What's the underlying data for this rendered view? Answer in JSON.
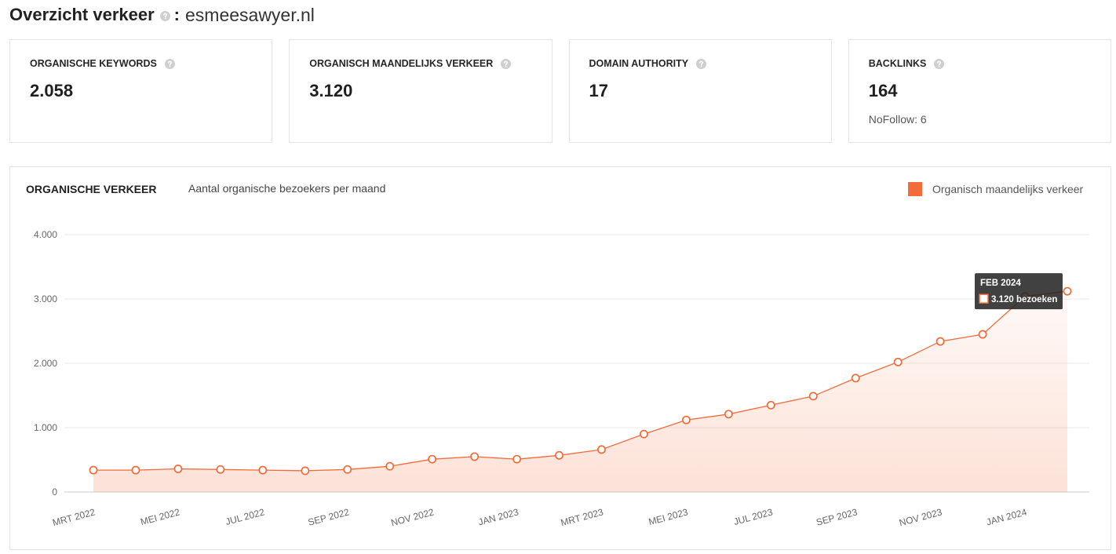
{
  "header": {
    "title": "Overzicht verkeer",
    "help_icon": "question-circle-icon",
    "separator": ":",
    "domain": "esmeesawyer.nl"
  },
  "stats": [
    {
      "label": "ORGANISCHE KEYWORDS",
      "value": "2.058",
      "help_icon": "question-circle-icon"
    },
    {
      "label": "ORGANISCH MAANDELIJKS VERKEER",
      "value": "3.120",
      "help_icon": "question-circle-icon"
    },
    {
      "label": "DOMAIN AUTHORITY",
      "value": "17",
      "help_icon": "question-circle-icon"
    },
    {
      "label": "BACKLINKS",
      "value": "164",
      "sub": "NoFollow: 6",
      "help_icon": "question-circle-icon"
    }
  ],
  "chart_data": {
    "type": "area",
    "title": "ORGANISCHE VERKEER",
    "subtitle": "Aantal organische bezoekers per maand",
    "ylim": [
      0,
      4000
    ],
    "y_ticks": [
      {
        "value": 0,
        "label": "0"
      },
      {
        "value": 1000,
        "label": "1.000"
      },
      {
        "value": 2000,
        "label": "2.000"
      },
      {
        "value": 3000,
        "label": "3.000"
      },
      {
        "value": 4000,
        "label": "4.000"
      }
    ],
    "x_ticks": [
      "MRT 2022",
      "MEI 2022",
      "JUL 2022",
      "SEP 2022",
      "NOV 2022",
      "JAN 2023",
      "MRT 2023",
      "MEI 2023",
      "JUL 2023",
      "SEP 2023",
      "NOV 2023",
      "JAN 2024"
    ],
    "series": [
      {
        "name": "Organisch maandelijks verkeer",
        "color": "#f26b3a",
        "values": [
          340,
          340,
          360,
          350,
          340,
          330,
          350,
          400,
          510,
          550,
          510,
          570,
          660,
          900,
          1120,
          1210,
          1350,
          1490,
          1770,
          2020,
          2340,
          2450,
          3040,
          3120
        ]
      }
    ],
    "grid": true,
    "legend": "top-right",
    "tooltip": {
      "title": "FEB 2024",
      "text": "3.120 bezoeken"
    }
  }
}
